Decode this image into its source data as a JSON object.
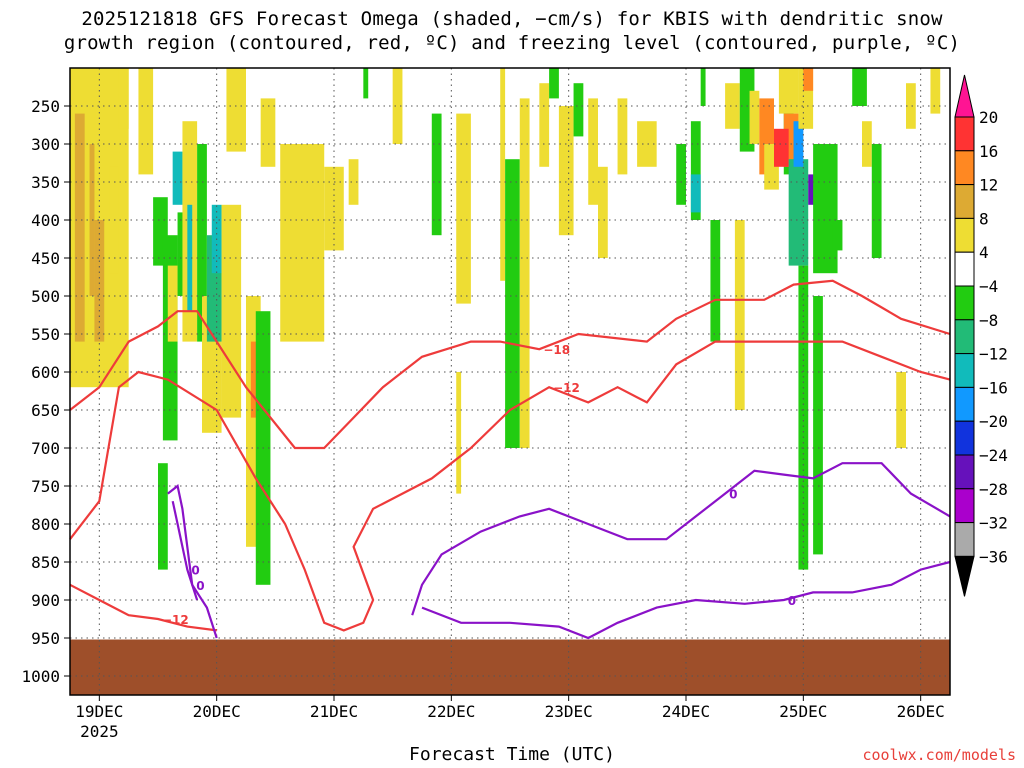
{
  "title_line1": "2025121818 GFS Forecast Omega (shaded, −cm/s) for KBIS with dendritic snow",
  "title_line2": "growth region (contoured, red, ºC) and freezing level (contoured, purple, ºC)",
  "credit": "coolwx.com/models",
  "chart_data": {
    "type": "heatmap",
    "title": "2025121818 GFS Forecast Omega (shaded, −cm/s) for KBIS with dendritic snow growth region (contoured, red, ºC) and freezing level (contoured, purple, ºC)",
    "xlabel": "Forecast Time (UTC)",
    "ylabel": "",
    "x_ticks": [
      {
        "label": "19DEC",
        "sublabel": "2025",
        "t": 6
      },
      {
        "label": "20DEC",
        "t": 30
      },
      {
        "label": "21DEC",
        "t": 54
      },
      {
        "label": "22DEC",
        "t": 78
      },
      {
        "label": "23DEC",
        "t": 102
      },
      {
        "label": "24DEC",
        "t": 126
      },
      {
        "label": "25DEC",
        "t": 150
      },
      {
        "label": "26DEC",
        "t": 174
      }
    ],
    "x_range_hours": [
      0,
      180
    ],
    "y_ticks": [
      250,
      300,
      350,
      400,
      450,
      500,
      550,
      600,
      650,
      700,
      750,
      800,
      850,
      900,
      950,
      1000
    ],
    "y_range_hpa": [
      200,
      1025
    ],
    "grid": true,
    "colorbar": {
      "labels": [
        "20",
        "16",
        "12",
        "8",
        "4",
        "−4",
        "−8",
        "−12",
        "−16",
        "−20",
        "−24",
        "−28",
        "−32",
        "−36"
      ],
      "colors": [
        "#ff1493",
        "#ff3333",
        "#ff8822",
        "#ddaa33",
        "#eedd33",
        "#ffffff",
        "#22cc11",
        "#22bb77",
        "#11bbbb",
        "#1199ff",
        "#1133dd",
        "#6611bb",
        "#aa00cc",
        "#aaaaaa",
        "#000000"
      ]
    },
    "shading": [
      {
        "t0": 0,
        "t1": 12,
        "p0": 200,
        "p1": 620,
        "v": 4
      },
      {
        "t0": 1,
        "t1": 3,
        "p0": 260,
        "p1": 560,
        "v": 8
      },
      {
        "t0": 4,
        "t1": 5,
        "p0": 300,
        "p1": 500,
        "v": 8
      },
      {
        "t0": 5,
        "t1": 7,
        "p0": 400,
        "p1": 560,
        "v": 8
      },
      {
        "t0": 8,
        "t1": 10,
        "p0": 330,
        "p1": 470,
        "v": 4
      },
      {
        "t0": 10,
        "t1": 12,
        "p0": 200,
        "p1": 280,
        "v": 4
      },
      {
        "t0": 14,
        "t1": 17,
        "p0": 200,
        "p1": 340,
        "v": 4
      },
      {
        "t0": 17,
        "t1": 20,
        "p0": 370,
        "p1": 460,
        "v": -8
      },
      {
        "t0": 19,
        "t1": 22,
        "p0": 420,
        "p1": 690,
        "v": -8
      },
      {
        "t0": 18,
        "t1": 20,
        "p0": 720,
        "p1": 860,
        "v": -8
      },
      {
        "t0": 20,
        "t1": 22,
        "p0": 460,
        "p1": 560,
        "v": 4
      },
      {
        "t0": 21,
        "t1": 23,
        "p0": 310,
        "p1": 380,
        "v": -16
      },
      {
        "t0": 22,
        "t1": 24,
        "p0": 390,
        "p1": 500,
        "v": -8
      },
      {
        "t0": 23,
        "t1": 26,
        "p0": 270,
        "p1": 560,
        "v": 4
      },
      {
        "t0": 24,
        "t1": 25,
        "p0": 380,
        "p1": 520,
        "v": -16
      },
      {
        "t0": 26,
        "t1": 28,
        "p0": 300,
        "p1": 560,
        "v": -8
      },
      {
        "t0": 27,
        "t1": 31,
        "p0": 500,
        "p1": 680,
        "v": 4
      },
      {
        "t0": 28,
        "t1": 31,
        "p0": 420,
        "p1": 560,
        "v": -12
      },
      {
        "t0": 29,
        "t1": 31,
        "p0": 380,
        "p1": 470,
        "v": -16
      },
      {
        "t0": 31,
        "t1": 35,
        "p0": 380,
        "p1": 660,
        "v": 4
      },
      {
        "t0": 32,
        "t1": 36,
        "p0": 200,
        "p1": 310,
        "v": 4
      },
      {
        "t0": 36,
        "t1": 39,
        "p0": 500,
        "p1": 830,
        "v": 4
      },
      {
        "t0": 37,
        "t1": 39,
        "p0": 560,
        "p1": 660,
        "v": 12
      },
      {
        "t0": 38,
        "t1": 41,
        "p0": 520,
        "p1": 880,
        "v": -8
      },
      {
        "t0": 39,
        "t1": 42,
        "p0": 240,
        "p1": 330,
        "v": 4
      },
      {
        "t0": 43,
        "t1": 52,
        "p0": 300,
        "p1": 560,
        "v": 4
      },
      {
        "t0": 52,
        "t1": 56,
        "p0": 330,
        "p1": 440,
        "v": 4
      },
      {
        "t0": 57,
        "t1": 59,
        "p0": 320,
        "p1": 380,
        "v": 4
      },
      {
        "t0": 60,
        "t1": 61,
        "p0": 200,
        "p1": 240,
        "v": -8
      },
      {
        "t0": 66,
        "t1": 68,
        "p0": 200,
        "p1": 300,
        "v": 4
      },
      {
        "t0": 74,
        "t1": 76,
        "p0": 260,
        "p1": 420,
        "v": -8
      },
      {
        "t0": 79,
        "t1": 82,
        "p0": 260,
        "p1": 510,
        "v": 4
      },
      {
        "t0": 79,
        "t1": 80,
        "p0": 600,
        "p1": 760,
        "v": 4
      },
      {
        "t0": 88,
        "t1": 89,
        "p0": 200,
        "p1": 480,
        "v": 4
      },
      {
        "t0": 89,
        "t1": 92,
        "p0": 320,
        "p1": 700,
        "v": -8
      },
      {
        "t0": 92,
        "t1": 94,
        "p0": 240,
        "p1": 700,
        "v": 4
      },
      {
        "t0": 96,
        "t1": 98,
        "p0": 220,
        "p1": 330,
        "v": 4
      },
      {
        "t0": 98,
        "t1": 100,
        "p0": 200,
        "p1": 240,
        "v": -8
      },
      {
        "t0": 100,
        "t1": 103,
        "p0": 250,
        "p1": 420,
        "v": 4
      },
      {
        "t0": 103,
        "t1": 105,
        "p0": 220,
        "p1": 290,
        "v": -8
      },
      {
        "t0": 106,
        "t1": 108,
        "p0": 240,
        "p1": 380,
        "v": 4
      },
      {
        "t0": 108,
        "t1": 110,
        "p0": 330,
        "p1": 450,
        "v": 4
      },
      {
        "t0": 112,
        "t1": 114,
        "p0": 240,
        "p1": 340,
        "v": 4
      },
      {
        "t0": 116,
        "t1": 120,
        "p0": 270,
        "p1": 330,
        "v": 4
      },
      {
        "t0": 124,
        "t1": 126,
        "p0": 300,
        "p1": 380,
        "v": -8
      },
      {
        "t0": 127,
        "t1": 129,
        "p0": 270,
        "p1": 400,
        "v": -8
      },
      {
        "t0": 127,
        "t1": 129,
        "p0": 340,
        "p1": 390,
        "v": -16
      },
      {
        "t0": 129,
        "t1": 130,
        "p0": 200,
        "p1": 250,
        "v": -8
      },
      {
        "t0": 131,
        "t1": 133,
        "p0": 400,
        "p1": 560,
        "v": -8
      },
      {
        "t0": 134,
        "t1": 137,
        "p0": 220,
        "p1": 280,
        "v": 4
      },
      {
        "t0": 136,
        "t1": 138,
        "p0": 400,
        "p1": 650,
        "v": 4
      },
      {
        "t0": 137,
        "t1": 140,
        "p0": 200,
        "p1": 310,
        "v": -8
      },
      {
        "t0": 139,
        "t1": 141,
        "p0": 230,
        "p1": 300,
        "v": 4
      },
      {
        "t0": 141,
        "t1": 144,
        "p0": 240,
        "p1": 340,
        "v": 12
      },
      {
        "t0": 142,
        "t1": 145,
        "p0": 300,
        "p1": 360,
        "v": 4
      },
      {
        "t0": 146,
        "t1": 148,
        "p0": 200,
        "p1": 340,
        "v": -8
      },
      {
        "t0": 145,
        "t1": 149,
        "p0": 200,
        "p1": 260,
        "v": 4
      },
      {
        "t0": 146,
        "t1": 149,
        "p0": 260,
        "p1": 330,
        "v": 12
      },
      {
        "t0": 144,
        "t1": 147,
        "p0": 280,
        "p1": 330,
        "v": 16
      },
      {
        "t0": 147,
        "t1": 151,
        "p0": 320,
        "p1": 460,
        "v": -12
      },
      {
        "t0": 148,
        "t1": 150,
        "p0": 270,
        "p1": 330,
        "v": -20
      },
      {
        "t0": 149,
        "t1": 152,
        "p0": 200,
        "p1": 280,
        "v": 4
      },
      {
        "t0": 151,
        "t1": 154,
        "p0": 340,
        "p1": 380,
        "v": -28
      },
      {
        "t0": 152,
        "t1": 157,
        "p0": 300,
        "p1": 470,
        "v": -8
      },
      {
        "t0": 149,
        "t1": 151,
        "p0": 460,
        "p1": 860,
        "v": -8
      },
      {
        "t0": 152,
        "t1": 154,
        "p0": 500,
        "p1": 840,
        "v": -8
      },
      {
        "t0": 150,
        "t1": 152,
        "p0": 200,
        "p1": 230,
        "v": 12
      },
      {
        "t0": 156,
        "t1": 158,
        "p0": 400,
        "p1": 440,
        "v": -8
      },
      {
        "t0": 160,
        "t1": 163,
        "p0": 200,
        "p1": 250,
        "v": -8
      },
      {
        "t0": 162,
        "t1": 164,
        "p0": 270,
        "p1": 330,
        "v": 4
      },
      {
        "t0": 164,
        "t1": 166,
        "p0": 300,
        "p1": 450,
        "v": -8
      },
      {
        "t0": 169,
        "t1": 171,
        "p0": 600,
        "p1": 700,
        "v": 4
      },
      {
        "t0": 171,
        "t1": 173,
        "p0": 220,
        "p1": 280,
        "v": 4
      },
      {
        "t0": 176,
        "t1": 178,
        "p0": 200,
        "p1": 260,
        "v": 4
      }
    ],
    "red_contours": [
      {
        "label": "−18",
        "points": [
          [
            0,
            650
          ],
          [
            6,
            620
          ],
          [
            12,
            560
          ],
          [
            18,
            540
          ],
          [
            22,
            520
          ],
          [
            26,
            520
          ],
          [
            30,
            560
          ],
          [
            36,
            620
          ],
          [
            46,
            700
          ],
          [
            52,
            700
          ],
          [
            58,
            660
          ],
          [
            64,
            620
          ],
          [
            72,
            580
          ],
          [
            82,
            560
          ],
          [
            88,
            560
          ],
          [
            96,
            570
          ],
          [
            104,
            550
          ],
          [
            118,
            560
          ],
          [
            124,
            530
          ],
          [
            132,
            505
          ],
          [
            142,
            505
          ],
          [
            148,
            485
          ],
          [
            156,
            480
          ],
          [
            162,
            500
          ],
          [
            170,
            530
          ],
          [
            180,
            550
          ]
        ]
      },
      {
        "label": "−12",
        "points": [
          [
            0,
            820
          ],
          [
            6,
            770
          ],
          [
            10,
            620
          ],
          [
            14,
            600
          ],
          [
            20,
            610
          ],
          [
            30,
            650
          ],
          [
            38,
            740
          ],
          [
            44,
            800
          ],
          [
            48,
            860
          ],
          [
            52,
            930
          ],
          [
            56,
            940
          ],
          [
            60,
            930
          ],
          [
            62,
            900
          ],
          [
            58,
            830
          ],
          [
            62,
            780
          ],
          [
            74,
            740
          ],
          [
            82,
            700
          ],
          [
            90,
            650
          ],
          [
            98,
            620
          ],
          [
            106,
            640
          ],
          [
            112,
            620
          ],
          [
            118,
            640
          ],
          [
            124,
            590
          ],
          [
            132,
            560
          ],
          [
            144,
            560
          ],
          [
            150,
            560
          ],
          [
            158,
            560
          ],
          [
            166,
            580
          ],
          [
            174,
            600
          ],
          [
            180,
            610
          ]
        ]
      },
      {
        "label": "−12",
        "points": [
          [
            0,
            880
          ],
          [
            6,
            900
          ],
          [
            12,
            920
          ],
          [
            18,
            925
          ],
          [
            24,
            935
          ],
          [
            30,
            940
          ]
        ]
      }
    ],
    "purple_contours": [
      {
        "label": "0",
        "points": [
          [
            20,
            760
          ],
          [
            22,
            750
          ],
          [
            23,
            780
          ],
          [
            25,
            880
          ],
          [
            28,
            910
          ],
          [
            30,
            950
          ]
        ]
      },
      {
        "label": "0",
        "points": [
          [
            21,
            770
          ],
          [
            22,
            800
          ],
          [
            24,
            860
          ],
          [
            26,
            900
          ]
        ]
      },
      {
        "label": "0",
        "points": [
          [
            70,
            920
          ],
          [
            72,
            880
          ],
          [
            76,
            840
          ],
          [
            84,
            810
          ],
          [
            92,
            790
          ],
          [
            98,
            780
          ],
          [
            106,
            800
          ],
          [
            114,
            820
          ],
          [
            122,
            820
          ],
          [
            128,
            790
          ],
          [
            134,
            760
          ],
          [
            140,
            730
          ],
          [
            146,
            735
          ],
          [
            152,
            740
          ],
          [
            158,
            720
          ],
          [
            166,
            720
          ],
          [
            172,
            760
          ],
          [
            180,
            790
          ]
        ]
      },
      {
        "label": "0",
        "points": [
          [
            72,
            910
          ],
          [
            80,
            930
          ],
          [
            90,
            930
          ],
          [
            100,
            935
          ],
          [
            106,
            950
          ],
          [
            112,
            930
          ],
          [
            120,
            910
          ],
          [
            128,
            900
          ],
          [
            138,
            905
          ],
          [
            146,
            900
          ],
          [
            152,
            890
          ],
          [
            160,
            890
          ],
          [
            168,
            880
          ],
          [
            174,
            860
          ],
          [
            180,
            850
          ]
        ]
      }
    ]
  }
}
